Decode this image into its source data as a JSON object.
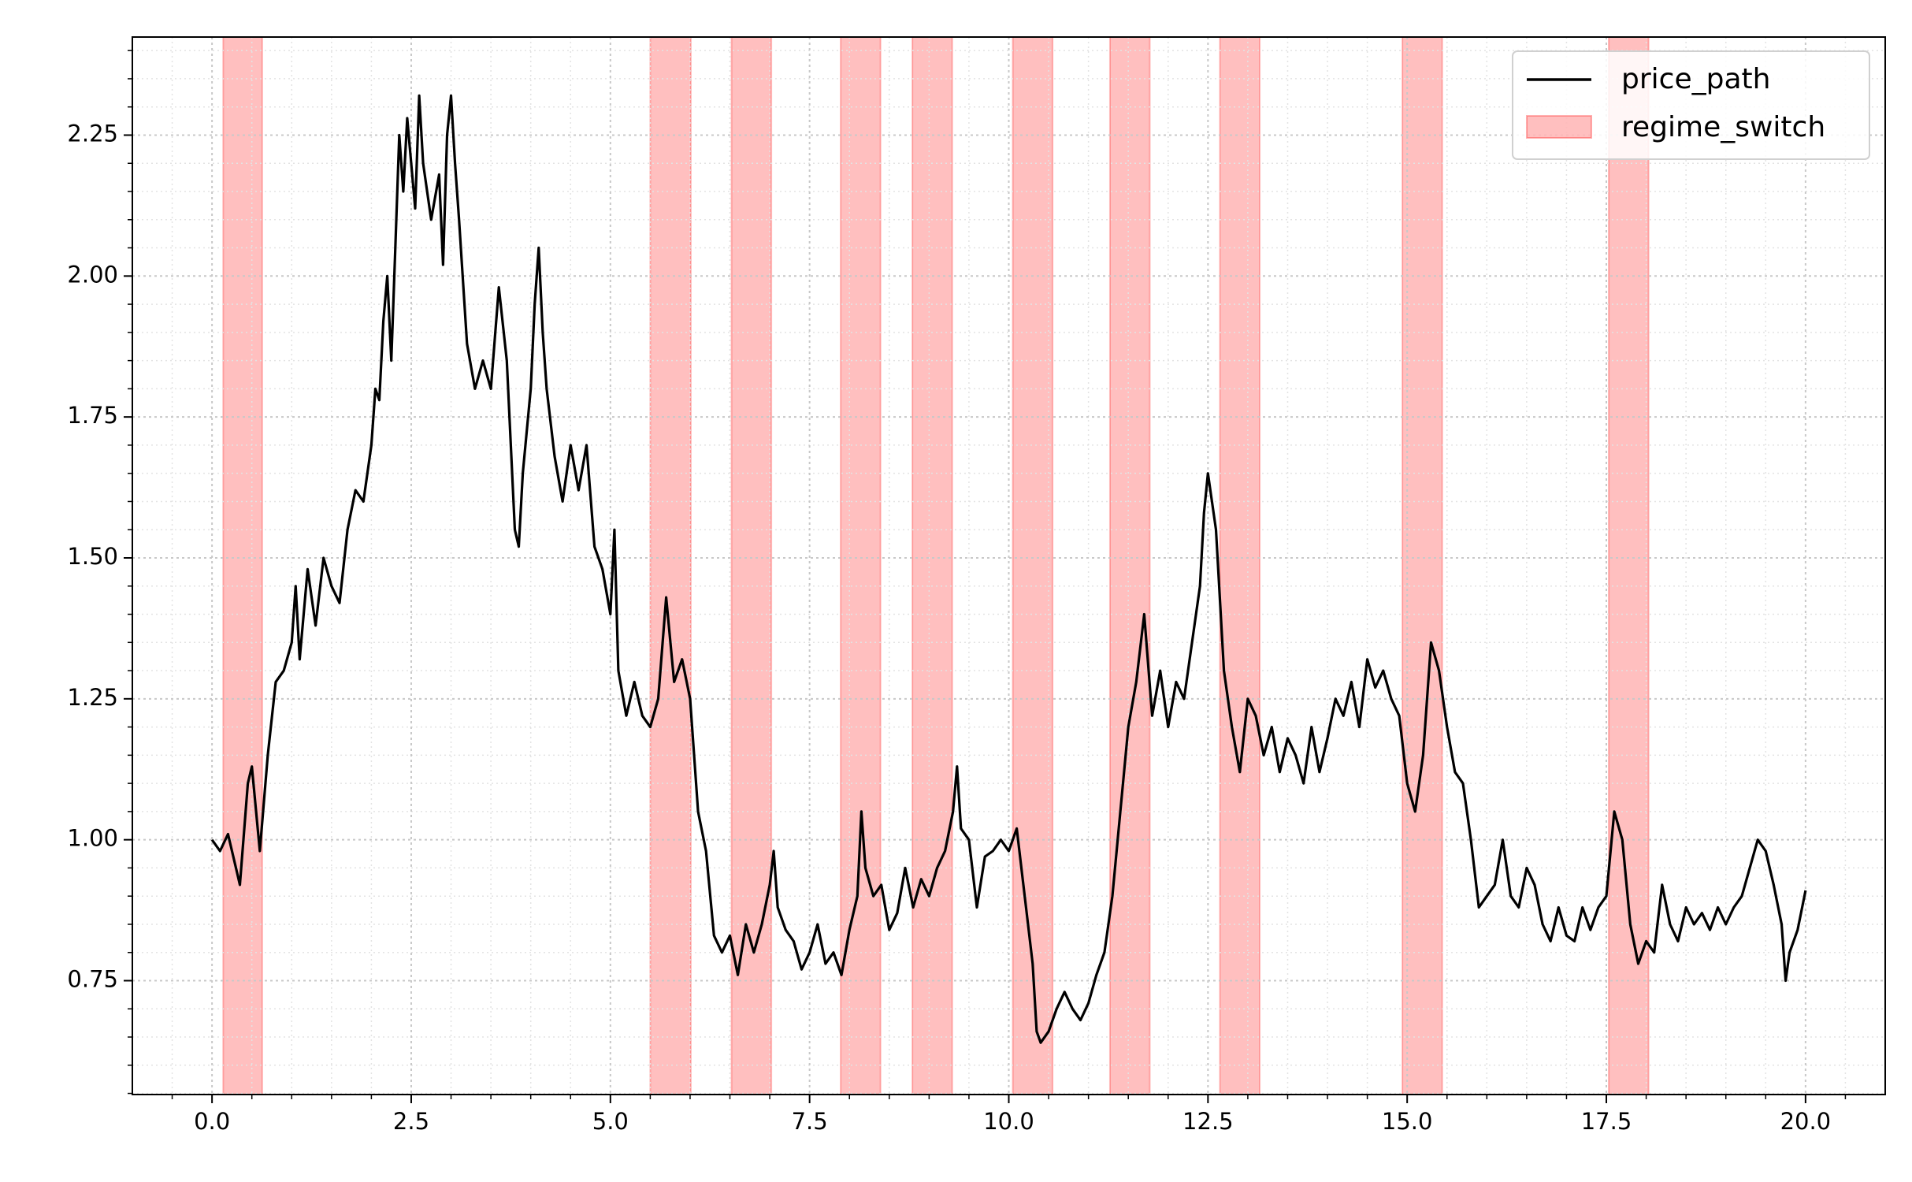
{
  "chart_data": {
    "type": "line",
    "xlim": [
      -1,
      21
    ],
    "ylim": [
      0.548,
      2.424
    ],
    "xticks": [
      {
        "value": 0,
        "label": "0.0"
      },
      2.5,
      {
        "value": 5,
        "label": "5.0"
      },
      7.5,
      {
        "value": 10,
        "label": "10.0"
      },
      12.5,
      {
        "value": 15,
        "label": "15.0"
      },
      17.5,
      {
        "value": 20,
        "label": "20.0"
      }
    ],
    "yticks": [
      0.75,
      {
        "value": 1,
        "label": "1.00"
      },
      1.25,
      {
        "value": 1.5,
        "label": "1.50"
      },
      1.75,
      {
        "value": 2,
        "label": "2.00"
      },
      2.25
    ],
    "xminorticks": [
      -0.5,
      0.5,
      1,
      1.5,
      2,
      3,
      3.5,
      4,
      4.5,
      5.5,
      6,
      6.5,
      7,
      8,
      8.5,
      9,
      9.5,
      10.5,
      11,
      11.5,
      12,
      13,
      13.5,
      14,
      14.5,
      15.5,
      16,
      16.5,
      17,
      18,
      18.5,
      19,
      19.5,
      20.5
    ],
    "yminorticks": [
      0.55,
      0.6,
      0.65,
      0.7,
      0.8,
      0.85,
      0.9,
      0.95,
      1.05,
      1.1,
      1.15,
      1.2,
      1.3,
      1.35,
      1.4,
      1.45,
      1.55,
      1.6,
      1.65,
      1.7,
      1.8,
      1.85,
      1.9,
      1.95,
      2.05,
      2.1,
      2.15,
      2.2,
      2.3,
      2.35,
      2.4
    ],
    "grid": true,
    "legend": "upper right",
    "series": [
      {
        "name": "price_path",
        "color": "#000000",
        "x": [
          0,
          0.1,
          0.2,
          0.3,
          0.35,
          0.45,
          0.5,
          0.6,
          0.7,
          0.8,
          0.9,
          1,
          1.05,
          1.1,
          1.2,
          1.3,
          1.4,
          1.5,
          1.6,
          1.7,
          1.8,
          1.9,
          2,
          2.05,
          2.1,
          2.15,
          2.2,
          2.25,
          2.3,
          2.35,
          2.4,
          2.45,
          2.55,
          2.6,
          2.65,
          2.75,
          2.85,
          2.9,
          2.95,
          3,
          3.05,
          3.1,
          3.2,
          3.3,
          3.4,
          3.5,
          3.6,
          3.7,
          3.8,
          3.85,
          3.9,
          4,
          4.05,
          4.1,
          4.15,
          4.2,
          4.3,
          4.4,
          4.5,
          4.6,
          4.7,
          4.8,
          4.9,
          5,
          5.05,
          5.1,
          5.2,
          5.3,
          5.4,
          5.5,
          5.6,
          5.7,
          5.8,
          5.9,
          6,
          6.1,
          6.2,
          6.3,
          6.4,
          6.5,
          6.6,
          6.7,
          6.8,
          6.9,
          7,
          7.05,
          7.1,
          7.2,
          7.3,
          7.4,
          7.5,
          7.6,
          7.7,
          7.8,
          7.9,
          8,
          8.1,
          8.15,
          8.2,
          8.3,
          8.4,
          8.5,
          8.6,
          8.7,
          8.8,
          8.9,
          9,
          9.1,
          9.2,
          9.3,
          9.35,
          9.4,
          9.5,
          9.6,
          9.7,
          9.8,
          9.9,
          10,
          10.1,
          10.2,
          10.3,
          10.35,
          10.4,
          10.5,
          10.6,
          10.7,
          10.8,
          10.9,
          11,
          11.1,
          11.2,
          11.3,
          11.4,
          11.5,
          11.6,
          11.7,
          11.8,
          11.9,
          12,
          12.1,
          12.2,
          12.3,
          12.4,
          12.45,
          12.5,
          12.6,
          12.7,
          12.8,
          12.9,
          13,
          13.1,
          13.2,
          13.3,
          13.4,
          13.5,
          13.6,
          13.7,
          13.8,
          13.9,
          14,
          14.1,
          14.2,
          14.3,
          14.4,
          14.5,
          14.6,
          14.7,
          14.8,
          14.9,
          15,
          15.1,
          15.2,
          15.3,
          15.4,
          15.5,
          15.6,
          15.7,
          15.8,
          15.9,
          16,
          16.1,
          16.2,
          16.3,
          16.4,
          16.5,
          16.6,
          16.7,
          16.8,
          16.9,
          17,
          17.1,
          17.2,
          17.3,
          17.4,
          17.5,
          17.6,
          17.7,
          17.8,
          17.9,
          18,
          18.1,
          18.2,
          18.3,
          18.4,
          18.5,
          18.6,
          18.7,
          18.8,
          18.9,
          19,
          19.1,
          19.2,
          19.3,
          19.4,
          19.5,
          19.6,
          19.7,
          19.75,
          19.8,
          19.9,
          20
        ],
        "values": [
          1,
          0.98,
          1.01,
          0.95,
          0.92,
          1.1,
          1.13,
          0.98,
          1.15,
          1.28,
          1.3,
          1.35,
          1.45,
          1.32,
          1.48,
          1.38,
          1.5,
          1.45,
          1.42,
          1.55,
          1.62,
          1.6,
          1.7,
          1.8,
          1.78,
          1.92,
          2,
          1.85,
          2.05,
          2.25,
          2.15,
          2.28,
          2.12,
          2.32,
          2.2,
          2.1,
          2.18,
          2.02,
          2.25,
          2.32,
          2.2,
          2.1,
          1.88,
          1.8,
          1.85,
          1.8,
          1.98,
          1.85,
          1.55,
          1.52,
          1.65,
          1.8,
          1.95,
          2.05,
          1.9,
          1.8,
          1.68,
          1.6,
          1.7,
          1.62,
          1.7,
          1.52,
          1.48,
          1.4,
          1.55,
          1.3,
          1.22,
          1.28,
          1.22,
          1.2,
          1.25,
          1.43,
          1.28,
          1.32,
          1.25,
          1.05,
          0.98,
          0.83,
          0.8,
          0.83,
          0.76,
          0.85,
          0.8,
          0.85,
          0.92,
          0.98,
          0.88,
          0.84,
          0.82,
          0.77,
          0.8,
          0.85,
          0.78,
          0.8,
          0.76,
          0.84,
          0.9,
          1.05,
          0.95,
          0.9,
          0.92,
          0.84,
          0.87,
          0.95,
          0.88,
          0.93,
          0.9,
          0.95,
          0.98,
          1.05,
          1.13,
          1.02,
          1,
          0.88,
          0.97,
          0.98,
          1,
          0.98,
          1.02,
          0.9,
          0.78,
          0.66,
          0.64,
          0.66,
          0.7,
          0.73,
          0.7,
          0.68,
          0.71,
          0.76,
          0.8,
          0.9,
          1.05,
          1.2,
          1.28,
          1.4,
          1.22,
          1.3,
          1.2,
          1.28,
          1.25,
          1.35,
          1.45,
          1.58,
          1.65,
          1.55,
          1.3,
          1.2,
          1.12,
          1.25,
          1.22,
          1.15,
          1.2,
          1.12,
          1.18,
          1.15,
          1.1,
          1.2,
          1.12,
          1.18,
          1.25,
          1.22,
          1.28,
          1.2,
          1.32,
          1.27,
          1.3,
          1.25,
          1.22,
          1.1,
          1.05,
          1.15,
          1.35,
          1.3,
          1.2,
          1.12,
          1.1,
          1,
          0.88,
          0.9,
          0.92,
          1,
          0.9,
          0.88,
          0.95,
          0.92,
          0.85,
          0.82,
          0.88,
          0.83,
          0.82,
          0.88,
          0.84,
          0.88,
          0.9,
          1.05,
          1,
          0.85,
          0.78,
          0.82,
          0.8,
          0.92,
          0.85,
          0.82,
          0.88,
          0.85,
          0.87,
          0.84,
          0.88,
          0.85,
          0.88,
          0.9,
          0.95,
          1,
          0.98,
          0.92,
          0.85,
          0.75,
          0.8,
          0.84,
          0.91
        ]
      }
    ],
    "regions": {
      "name": "regime_switch",
      "color": "#ff0000",
      "spans": [
        [
          0.14,
          0.63
        ],
        [
          5.5,
          6.01
        ],
        [
          6.52,
          7.02
        ],
        [
          7.89,
          8.39
        ],
        [
          8.79,
          9.29
        ],
        [
          10.05,
          10.55
        ],
        [
          11.27,
          11.77
        ],
        [
          12.65,
          13.15
        ],
        [
          14.94,
          15.44
        ],
        [
          17.53,
          18.03
        ]
      ]
    }
  }
}
